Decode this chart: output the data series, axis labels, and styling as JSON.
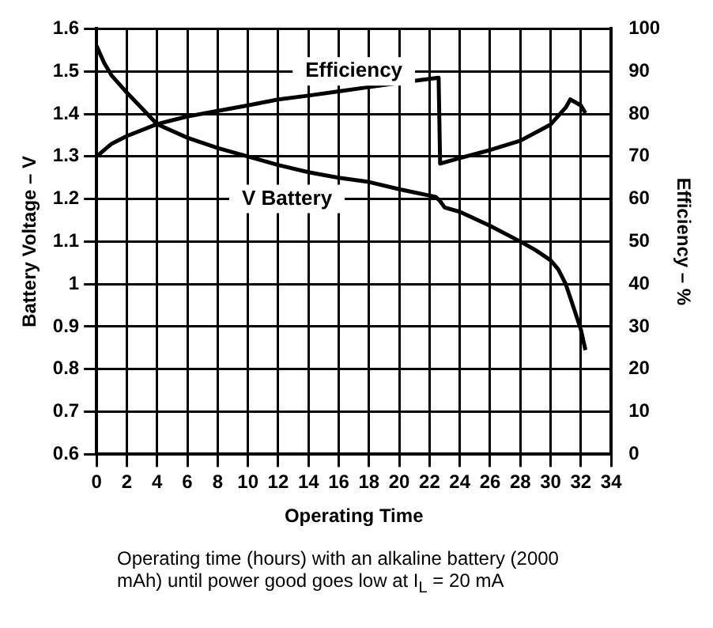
{
  "chart_data": {
    "type": "line",
    "xlabel": "Operating Time",
    "ylabel": "Battery Voltage – V",
    "y2label": "Efficiency – %",
    "xlim": [
      0,
      34
    ],
    "xticks": [
      0,
      2,
      4,
      6,
      8,
      10,
      12,
      14,
      16,
      18,
      20,
      22,
      24,
      26,
      28,
      30,
      32,
      34
    ],
    "ylim": [
      0.6,
      1.6
    ],
    "yticks": [
      0.6,
      0.7,
      0.8,
      0.9,
      {
        "value": 1.0,
        "label": "1"
      },
      1.1,
      1.2,
      1.3,
      1.4,
      1.5,
      1.6
    ],
    "y2lim": [
      0,
      100
    ],
    "y2ticks": [
      0,
      10,
      20,
      30,
      40,
      50,
      60,
      70,
      80,
      90,
      100
    ],
    "grid": true,
    "legend": false,
    "marker": "none",
    "line_style": "solid",
    "series": [
      {
        "name": "Efficiency",
        "color": "#000000",
        "axis": "y2",
        "x": [
          0,
          1,
          2,
          4,
          6,
          8,
          10,
          12,
          14,
          16,
          18,
          20,
          22.6,
          22.7,
          24,
          26,
          28,
          30,
          31,
          31.3,
          32,
          32.3
        ],
        "values": [
          70,
          73,
          74.8,
          77.6,
          79.4,
          80.7,
          82,
          83.4,
          84.3,
          85.3,
          86.3,
          87.3,
          88.5,
          68.3,
          69.6,
          71.5,
          73.7,
          77.5,
          81.5,
          83.4,
          82,
          80.2
        ]
      },
      {
        "name": "V Battery",
        "color": "#000000",
        "axis": "y",
        "x": [
          0,
          0.5,
          1,
          2,
          4,
          6,
          8,
          10,
          12,
          14,
          16,
          18,
          20,
          22.4,
          22.7,
          23,
          24,
          26,
          28,
          29,
          30,
          30.5,
          31,
          31.5,
          32,
          32.3
        ],
        "values": [
          1.56,
          1.52,
          1.49,
          1.45,
          1.376,
          1.344,
          1.32,
          1.3,
          1.28,
          1.263,
          1.25,
          1.24,
          1.223,
          1.205,
          1.195,
          1.18,
          1.17,
          1.137,
          1.1,
          1.08,
          1.056,
          1.035,
          1.0,
          0.947,
          0.893,
          0.845
        ]
      }
    ],
    "annotations": [
      "Operating time (hours) with an alkaline battery (2000 mAh) until power good goes low at I$_{L}$ = 20 mA"
    ]
  }
}
